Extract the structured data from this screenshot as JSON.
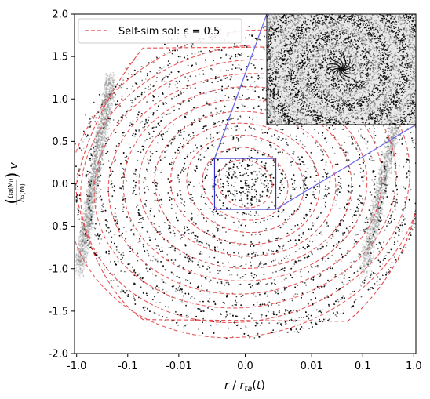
{
  "chart_data": {
    "type": "scatter",
    "xlabel": "r / r_ta(t)",
    "ylabel": "(t_ta(M_i) / r_ta(M_i)) v",
    "x_scale": "symmetric-log",
    "x_ticks": [
      "-1.0",
      "-0.1",
      "-0.01",
      "0.0",
      "0.01",
      "0.1",
      "1.0"
    ],
    "x_tick_values": [
      -1.0,
      -0.1,
      -0.01,
      0.0,
      0.01,
      0.1,
      1.0
    ],
    "xlim": [
      -1.1,
      1.1
    ],
    "ylim": [
      -2.0,
      2.0
    ],
    "y_ticks": [
      "-2.0",
      "-1.5",
      "-1.0",
      "-0.5",
      "0.0",
      "0.5",
      "1.0",
      "1.5",
      "2.0"
    ],
    "y_tick_values": [
      -2.0,
      -1.5,
      -1.0,
      -0.5,
      0.0,
      0.5,
      1.0,
      1.5,
      2.0
    ],
    "grid": false,
    "legend_position": "top-left",
    "series": [
      {
        "name": "Self-sim sol: ε = 0.5",
        "style": "dashed",
        "color": "#e8474a",
        "kind": "line"
      },
      {
        "kind": "scatter",
        "color": "#000000",
        "description": "particles"
      }
    ],
    "inset": {
      "kind": "zoom",
      "color": "#4444dd",
      "x_range": [
        -0.003,
        0.003
      ],
      "y_range": [
        -0.3,
        0.3
      ]
    },
    "colors": {
      "self_sim": "#e8474a",
      "particles": "#000000",
      "zoom_box": "#3333cc"
    }
  }
}
